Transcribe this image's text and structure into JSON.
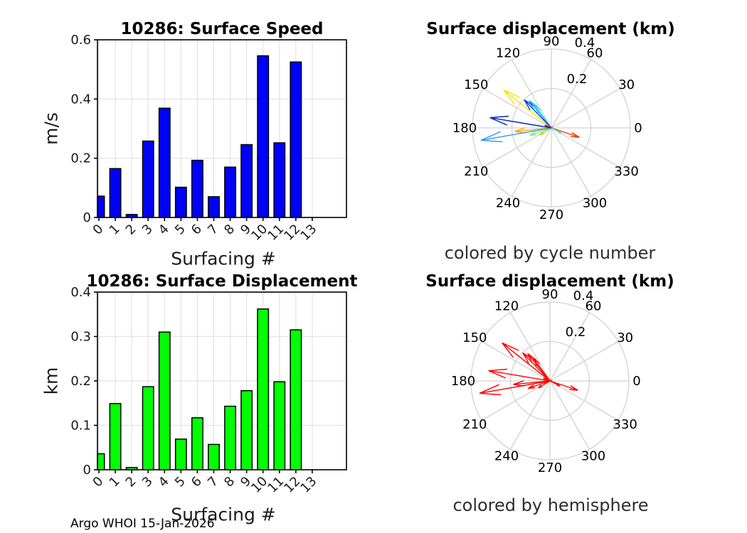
{
  "figure": {
    "background": "#ffffff"
  },
  "footer": {
    "text": "Argo WHOI 15-Jan-2026"
  },
  "colors": {
    "speed_bar": "#0000ff",
    "displacement_bar": "#00ff00",
    "bar_edge": "#000000",
    "cartesian_grid": "#e3e3e3",
    "polar_grid": "#d2d2d2",
    "axis_box": "#000000",
    "tick_label": "#1a1a1a",
    "hemisphere_arrow": "#ff0000"
  },
  "chart_data": [
    {
      "id": "surface-speed",
      "type": "bar",
      "title": "10286: Surface Speed",
      "xlabel": "Surfacing #",
      "ylabel": "m/s",
      "categories": [
        "0",
        "1",
        "2",
        "3",
        "4",
        "5",
        "6",
        "7",
        "8",
        "9",
        "10",
        "11",
        "12",
        "13"
      ],
      "values": [
        0.072,
        0.165,
        0.01,
        0.258,
        0.369,
        0.102,
        0.193,
        0.07,
        0.17,
        0.246,
        0.546,
        0.252,
        0.525,
        null
      ],
      "ylim": [
        0,
        0.6
      ],
      "yticks": [
        0,
        0.2,
        0.4,
        0.6
      ],
      "grid": true,
      "bar_color": "#0000ff",
      "bar_edge": "#000000"
    },
    {
      "id": "displacement-by-cycle",
      "type": "polar-quiver",
      "title": "Surface displacement (km)",
      "subtitle": "colored by cycle number",
      "rlim": [
        0,
        0.4
      ],
      "rticks": [
        0.2,
        0.4
      ],
      "theta_ticks_deg": [
        0,
        30,
        60,
        90,
        120,
        150,
        180,
        210,
        240,
        270,
        300,
        330
      ],
      "grid": true,
      "arrows": [
        {
          "cycle": 0,
          "angle_deg": 158,
          "length_km": 0.036,
          "color": "#cc0000"
        },
        {
          "cycle": 1,
          "angle_deg": 341.5,
          "length_km": 0.149,
          "color": "#ee3900"
        },
        {
          "cycle": 2,
          "angle_deg": 195,
          "length_km": 0.005,
          "color": "#ff7300"
        },
        {
          "cycle": 3,
          "angle_deg": 185.5,
          "length_km": 0.187,
          "color": "#ffa800"
        },
        {
          "cycle": 4,
          "angle_deg": 141.5,
          "length_km": 0.31,
          "color": "#ffe100"
        },
        {
          "cycle": 5,
          "angle_deg": 211,
          "length_km": 0.069,
          "color": "#aadd22"
        },
        {
          "cycle": 6,
          "angle_deg": 199,
          "length_km": 0.117,
          "color": "#8ce68c"
        },
        {
          "cycle": 7,
          "angle_deg": 333,
          "length_km": 0.057,
          "color": "#52e0b0"
        },
        {
          "cycle": 8,
          "angle_deg": 126,
          "length_km": 0.143,
          "color": "#3dd9e8"
        },
        {
          "cycle": 9,
          "angle_deg": 129,
          "length_km": 0.178,
          "color": "#00b4f0"
        },
        {
          "cycle": 10,
          "angle_deg": 190,
          "length_km": 0.362,
          "color": "#3399ff"
        },
        {
          "cycle": 11,
          "angle_deg": 134,
          "length_km": 0.198,
          "color": "#0045e6"
        },
        {
          "cycle": 12,
          "angle_deg": 170.5,
          "length_km": 0.315,
          "color": "#0022bb"
        }
      ]
    },
    {
      "id": "surface-displacement",
      "type": "bar",
      "title": "10286: Surface Displacement",
      "xlabel": "Surfacing #",
      "ylabel": "km",
      "categories": [
        "0",
        "1",
        "2",
        "3",
        "4",
        "5",
        "6",
        "7",
        "8",
        "9",
        "10",
        "11",
        "12",
        "13"
      ],
      "values": [
        0.036,
        0.149,
        0.005,
        0.187,
        0.31,
        0.069,
        0.117,
        0.057,
        0.143,
        0.178,
        0.362,
        0.198,
        0.315,
        null
      ],
      "ylim": [
        0,
        0.4
      ],
      "yticks": [
        0,
        0.1,
        0.2,
        0.3,
        0.4
      ],
      "grid": true,
      "bar_color": "#00ff00",
      "bar_edge": "#000000"
    },
    {
      "id": "displacement-by-hemisphere",
      "type": "polar-quiver",
      "title": "Surface displacement (km)",
      "subtitle": "colored by hemisphere",
      "rlim": [
        0,
        0.4
      ],
      "rticks": [
        0.2,
        0.4
      ],
      "theta_ticks_deg": [
        0,
        30,
        60,
        90,
        120,
        150,
        180,
        210,
        240,
        270,
        300,
        330
      ],
      "grid": true,
      "arrows": [
        {
          "cycle": 0,
          "angle_deg": 158,
          "length_km": 0.036,
          "color": "#ff0000"
        },
        {
          "cycle": 1,
          "angle_deg": 341.5,
          "length_km": 0.149,
          "color": "#ff0000"
        },
        {
          "cycle": 2,
          "angle_deg": 195,
          "length_km": 0.005,
          "color": "#ff0000"
        },
        {
          "cycle": 3,
          "angle_deg": 185.5,
          "length_km": 0.187,
          "color": "#ff0000"
        },
        {
          "cycle": 4,
          "angle_deg": 141.5,
          "length_km": 0.31,
          "color": "#ff0000"
        },
        {
          "cycle": 5,
          "angle_deg": 211,
          "length_km": 0.069,
          "color": "#ff0000"
        },
        {
          "cycle": 6,
          "angle_deg": 199,
          "length_km": 0.117,
          "color": "#ff0000"
        },
        {
          "cycle": 7,
          "angle_deg": 333,
          "length_km": 0.057,
          "color": "#ff0000"
        },
        {
          "cycle": 8,
          "angle_deg": 126,
          "length_km": 0.143,
          "color": "#ff0000"
        },
        {
          "cycle": 9,
          "angle_deg": 129,
          "length_km": 0.178,
          "color": "#ff0000"
        },
        {
          "cycle": 10,
          "angle_deg": 190,
          "length_km": 0.362,
          "color": "#ff0000"
        },
        {
          "cycle": 11,
          "angle_deg": 134,
          "length_km": 0.198,
          "color": "#ff0000"
        },
        {
          "cycle": 12,
          "angle_deg": 170.5,
          "length_km": 0.315,
          "color": "#ff0000"
        }
      ]
    }
  ]
}
